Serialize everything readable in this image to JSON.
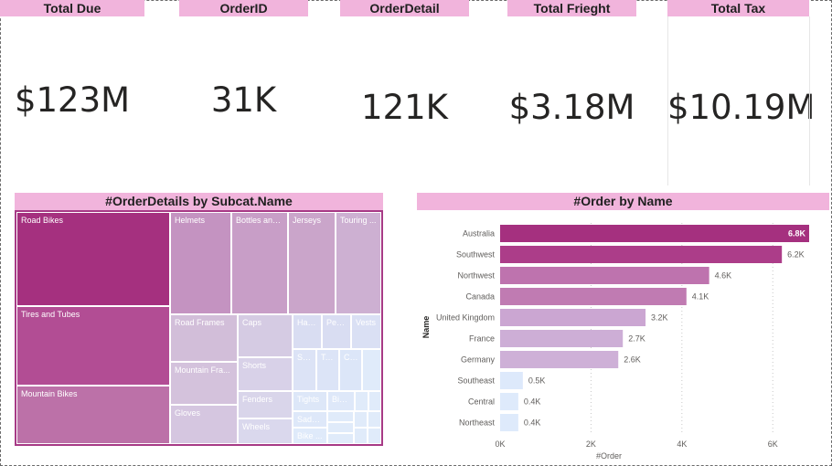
{
  "cards": [
    {
      "title": "Total Due",
      "value": "$123M"
    },
    {
      "title": "OrderID",
      "value": "31K"
    },
    {
      "title": "OrderDetail",
      "value": "121K"
    },
    {
      "title": "Total Frieght",
      "value": "$3.18M"
    },
    {
      "title": "Total Tax",
      "value": "$10.19M"
    }
  ],
  "treemap": {
    "title": "#OrderDetails by Subcat.Name",
    "tiles": [
      {
        "label": "Road Bikes",
        "color": "#a5307f"
      },
      {
        "label": "Tires and Tubes",
        "color": "#b24d94"
      },
      {
        "label": "Mountain Bikes",
        "color": "#bc71a8"
      },
      {
        "label": "Helmets",
        "color": "#c493c1"
      },
      {
        "label": "Bottles and...",
        "color": "#c89ec7"
      },
      {
        "label": "Jerseys",
        "color": "#caa5ca"
      },
      {
        "label": "Touring ...",
        "color": "#cdb0d2"
      },
      {
        "label": "Road Frames",
        "color": "#d2bed9"
      },
      {
        "label": "Mountain Fra...",
        "color": "#d4c2dc"
      },
      {
        "label": "Gloves",
        "color": "#d5c6e0"
      },
      {
        "label": "Caps",
        "color": "#d5cbe3"
      },
      {
        "label": "Shorts",
        "color": "#d8d1e8"
      },
      {
        "label": "Fenders",
        "color": "#d9d5ea"
      },
      {
        "label": "Wheels",
        "color": "#dad8ed"
      },
      {
        "label": "Han...",
        "color": "#d9ddf2"
      },
      {
        "label": "Ped...",
        "color": "#d9ddf2"
      },
      {
        "label": "Vests",
        "color": "#dae0f4"
      },
      {
        "label": "So...",
        "color": "#dce3f6"
      },
      {
        "label": "To...",
        "color": "#dce4f7"
      },
      {
        "label": "Cl...",
        "color": "#dce6f8"
      },
      {
        "label": "Tights",
        "color": "#dde7f8"
      },
      {
        "label": "Bib...",
        "color": "#dee8f9"
      },
      {
        "label": "Saddl...",
        "color": "#dee8f9"
      },
      {
        "label": "Bike ...",
        "color": "#dfeafa"
      }
    ]
  },
  "chart_data": {
    "type": "bar",
    "orientation": "horizontal",
    "title": "#Order by Name",
    "xlabel": "#Order",
    "ylabel": "Name",
    "categories": [
      "Australia",
      "Southwest",
      "Northwest",
      "Canada",
      "United Kingdom",
      "France",
      "Germany",
      "Southeast",
      "Central",
      "Northeast"
    ],
    "values": [
      6800,
      6200,
      4600,
      4100,
      3200,
      2700,
      2600,
      500,
      400,
      400
    ],
    "data_labels": [
      "6.8K",
      "6.2K",
      "4.6K",
      "4.1K",
      "3.2K",
      "2.7K",
      "2.6K",
      "0.5K",
      "0.4K",
      "0.4K"
    ],
    "colors": [
      "#a5307f",
      "#ac3d89",
      "#be73ae",
      "#c07bb2",
      "#cba6d2",
      "#cdaed6",
      "#ceb0d7",
      "#dde9fb",
      "#deeafb",
      "#deeafb"
    ],
    "xlim": [
      0,
      6800
    ],
    "xticks": [
      0,
      2000,
      4000,
      6000
    ],
    "xtick_labels": [
      "0K",
      "2K",
      "4K",
      "6K"
    ],
    "grid": true
  }
}
